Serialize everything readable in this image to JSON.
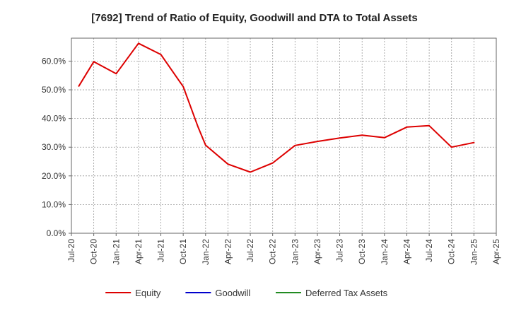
{
  "chart_data": {
    "type": "line",
    "title": "[7692]  Trend of Ratio of Equity, Goodwill and DTA to Total Assets",
    "xlabel": "",
    "ylabel": "",
    "ylim": [
      0,
      0.68
    ],
    "y_ticks": [
      {
        "value": 0.0,
        "label": "0.0%"
      },
      {
        "value": 0.1,
        "label": "10.0%"
      },
      {
        "value": 0.2,
        "label": "20.0%"
      },
      {
        "value": 0.3,
        "label": "30.0%"
      },
      {
        "value": 0.4,
        "label": "40.0%"
      },
      {
        "value": 0.5,
        "label": "50.0%"
      },
      {
        "value": 0.6,
        "label": "60.0%"
      }
    ],
    "x_range": [
      "2020-07",
      "2025-04"
    ],
    "x_ticks": [
      "Jul-20",
      "Oct-20",
      "Jan-21",
      "Apr-21",
      "Jul-21",
      "Oct-21",
      "Jan-22",
      "Apr-22",
      "Jul-22",
      "Oct-22",
      "Jan-23",
      "Apr-23",
      "Jul-23",
      "Oct-23",
      "Jan-24",
      "Apr-24",
      "Jul-24",
      "Oct-24",
      "Jan-25",
      "Apr-25"
    ],
    "grid": true,
    "legend_position": "bottom",
    "series": [
      {
        "name": "Equity",
        "color": "#dd0000",
        "x": [
          "2020-08",
          "2020-10",
          "2021-01",
          "2021-04",
          "2021-07",
          "2021-10",
          "2021-12",
          "2022-01",
          "2022-04",
          "2022-07",
          "2022-10",
          "2023-01",
          "2023-04",
          "2023-07",
          "2023-10",
          "2024-01",
          "2024-04",
          "2024-07",
          "2024-10",
          "2025-01"
        ],
        "values": [
          0.513,
          0.598,
          0.556,
          0.662,
          0.623,
          0.511,
          0.37,
          0.307,
          0.241,
          0.213,
          0.245,
          0.306,
          0.32,
          0.332,
          0.342,
          0.333,
          0.37,
          0.375,
          0.3,
          0.316
        ]
      },
      {
        "name": "Goodwill",
        "color": "#0000cc",
        "x": [],
        "values": []
      },
      {
        "name": "Deferred Tax Assets",
        "color": "#228b22",
        "x": [],
        "values": []
      }
    ]
  }
}
